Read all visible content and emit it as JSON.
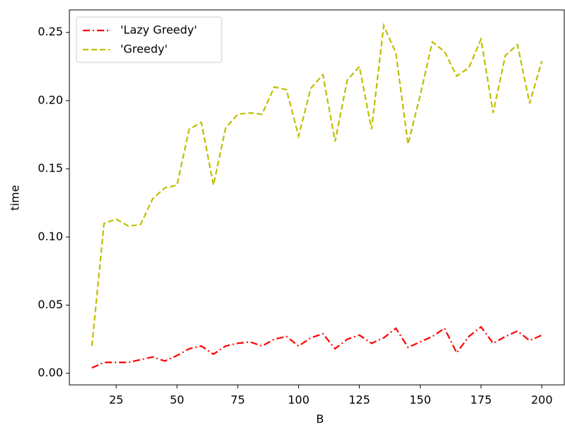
{
  "chart_data": {
    "type": "line",
    "xlabel": "B",
    "ylabel": "time",
    "x": [
      15,
      20,
      25,
      30,
      35,
      40,
      45,
      50,
      55,
      60,
      65,
      70,
      75,
      80,
      85,
      90,
      95,
      100,
      105,
      110,
      115,
      120,
      125,
      130,
      135,
      140,
      145,
      150,
      155,
      160,
      165,
      170,
      175,
      180,
      185,
      190,
      195,
      200
    ],
    "series": [
      {
        "name": "'Lazy Greedy'",
        "color": "#ff0000",
        "linestyle": "dashdot",
        "values": [
          0.004,
          0.008,
          0.008,
          0.008,
          0.01,
          0.012,
          0.009,
          0.013,
          0.018,
          0.02,
          0.014,
          0.02,
          0.022,
          0.023,
          0.02,
          0.025,
          0.027,
          0.02,
          0.026,
          0.029,
          0.018,
          0.025,
          0.028,
          0.022,
          0.026,
          0.033,
          0.019,
          0.023,
          0.027,
          0.033,
          0.015,
          0.027,
          0.034,
          0.022,
          0.027,
          0.031,
          0.024,
          0.028
        ]
      },
      {
        "name": "'Greedy'",
        "color": "#bfbf00",
        "linestyle": "dashed",
        "values": [
          0.02,
          0.11,
          0.113,
          0.108,
          0.109,
          0.128,
          0.136,
          0.138,
          0.179,
          0.184,
          0.138,
          0.18,
          0.19,
          0.191,
          0.19,
          0.21,
          0.208,
          0.174,
          0.209,
          0.219,
          0.17,
          0.215,
          0.225,
          0.179,
          0.255,
          0.235,
          0.168,
          0.204,
          0.243,
          0.236,
          0.218,
          0.224,
          0.245,
          0.191,
          0.233,
          0.241,
          0.198,
          0.229
        ]
      }
    ],
    "xlim": [
      5.75,
      209.25
    ],
    "ylim": [
      -0.0085,
      0.2665
    ],
    "xticks": [
      25,
      50,
      75,
      100,
      125,
      150,
      175,
      200
    ],
    "yticks": [
      {
        "value": 0,
        "label": "0.00"
      },
      0.05,
      {
        "value": 0.1,
        "label": "0.10"
      },
      0.15,
      {
        "value": 0.2,
        "label": "0.20"
      },
      0.25
    ],
    "legend": "upper left"
  }
}
